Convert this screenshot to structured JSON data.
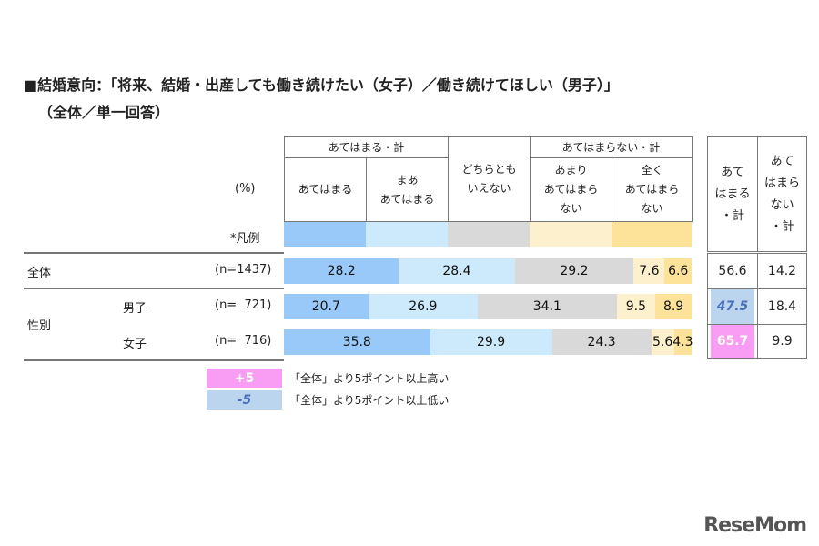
{
  "chart_data": {
    "type": "bar",
    "orientation": "horizontal-stacked-100",
    "title": "■結婚意向：「将来、結婚・出産しても働き続けたい（女子）／働き続けてほしい（男子）」",
    "subtitle": "（全体／単一回答）",
    "unit_label": "(%)",
    "legend_label": "*凡例",
    "group_headers": [
      "あてはまる・計",
      "あてはまらない・計"
    ],
    "series": [
      {
        "name": "あてはまる",
        "color": "#99c9f9",
        "values": [
          28.2,
          20.7,
          35.8
        ]
      },
      {
        "name": "まあ\nあてはまる",
        "color": "#cde9fc",
        "values": [
          28.4,
          26.9,
          29.9
        ]
      },
      {
        "name": "どちらとも\nいえない",
        "color": "#d9d9d9",
        "values": [
          29.2,
          34.1,
          24.3
        ]
      },
      {
        "name": "あまり\nあてはまら\nない",
        "color": "#fdf0cc",
        "values": [
          7.6,
          9.5,
          5.6
        ]
      },
      {
        "name": "全く\nあてはまら\nない",
        "color": "#fde39a",
        "values": [
          6.6,
          8.9,
          4.3
        ]
      }
    ],
    "categories": [
      {
        "group": "全体",
        "label": "",
        "n": "(n=1437)"
      },
      {
        "group": "性別",
        "label": "男子",
        "n": "(n=  721)"
      },
      {
        "group": "",
        "label": "女子",
        "n": "(n=  716)"
      }
    ],
    "totals_headers": [
      "あて\nはまる\n・計",
      "あて\nはまら\nない\n・計"
    ],
    "totals": [
      {
        "agree": "56.6",
        "disagree": "14.2",
        "agree_flag": "none"
      },
      {
        "agree": "47.5",
        "disagree": "18.4",
        "agree_flag": "low"
      },
      {
        "agree": "65.7",
        "disagree": "9.9",
        "agree_flag": "high"
      }
    ],
    "key": [
      {
        "badge": "+5",
        "text": "「全体」より5ポイント以上高い",
        "color": "#f99cf3"
      },
      {
        "badge": "-5",
        "text": "「全体」より5ポイント以上低い",
        "color": "#bcd5ee"
      }
    ]
  },
  "logo": "ReseMom"
}
